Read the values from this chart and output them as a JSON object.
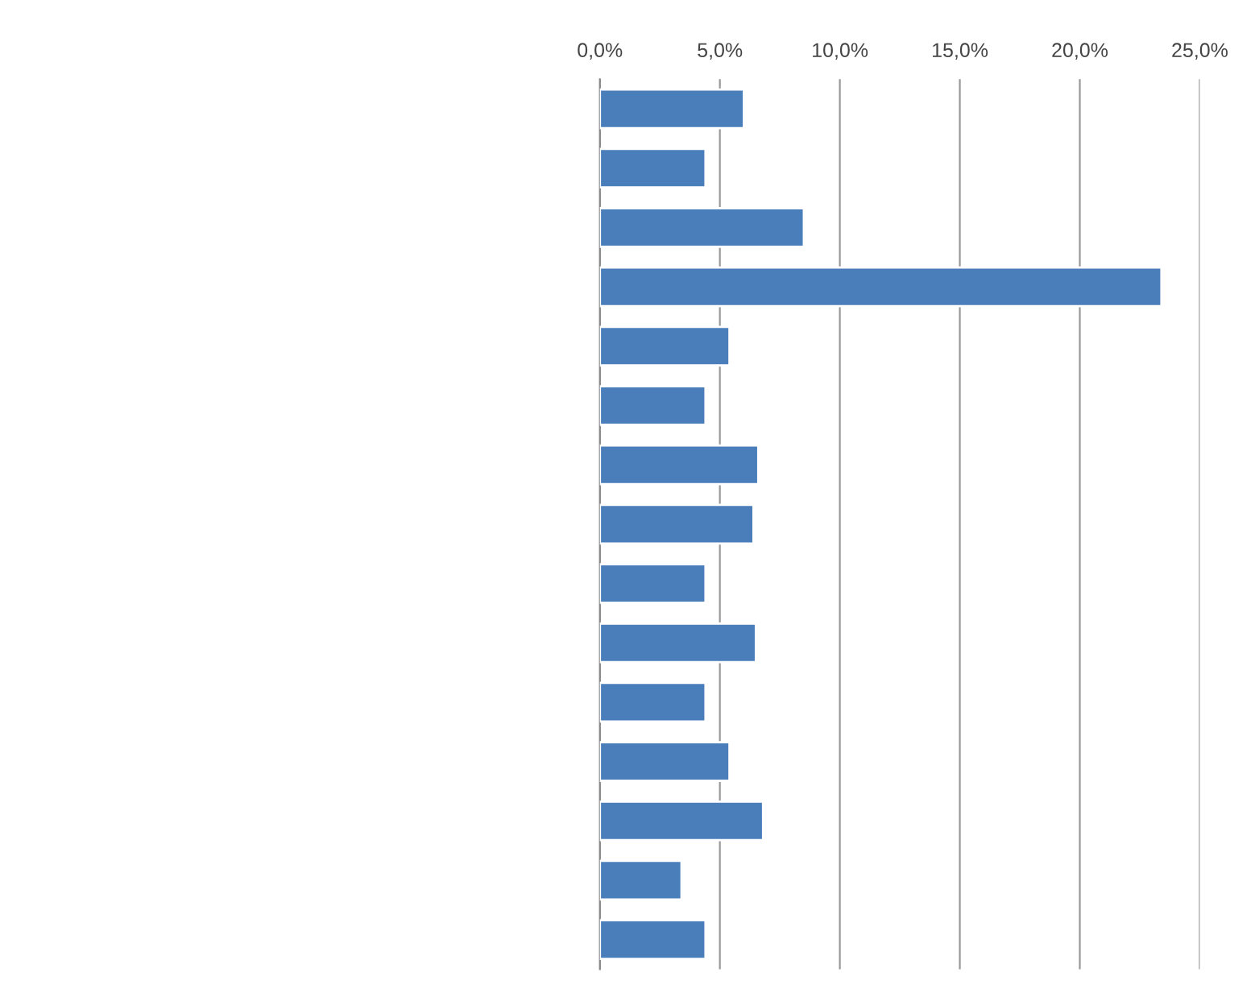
{
  "chart_data": {
    "type": "bar",
    "orientation": "horizontal",
    "categories": [
      null,
      null,
      null,
      null,
      null,
      null,
      null,
      null,
      null,
      null,
      null,
      null,
      null,
      null,
      null
    ],
    "values": [
      6.0,
      4.4,
      8.5,
      23.4,
      5.4,
      4.4,
      6.6,
      6.4,
      4.4,
      6.5,
      4.4,
      5.4,
      6.8,
      3.4,
      4.4
    ],
    "color": "#4a7ebb",
    "xlim": [
      0,
      25
    ],
    "xticks": [
      {
        "value": 0,
        "label": "0,0%"
      },
      {
        "value": 5,
        "label": "5,0%"
      },
      {
        "value": 10,
        "label": "10,0%"
      },
      {
        "value": 15,
        "label": "15,0%"
      },
      {
        "value": 20,
        "label": "20,0%"
      },
      {
        "value": 25,
        "label": "25,0%"
      }
    ],
    "grid": "x"
  }
}
